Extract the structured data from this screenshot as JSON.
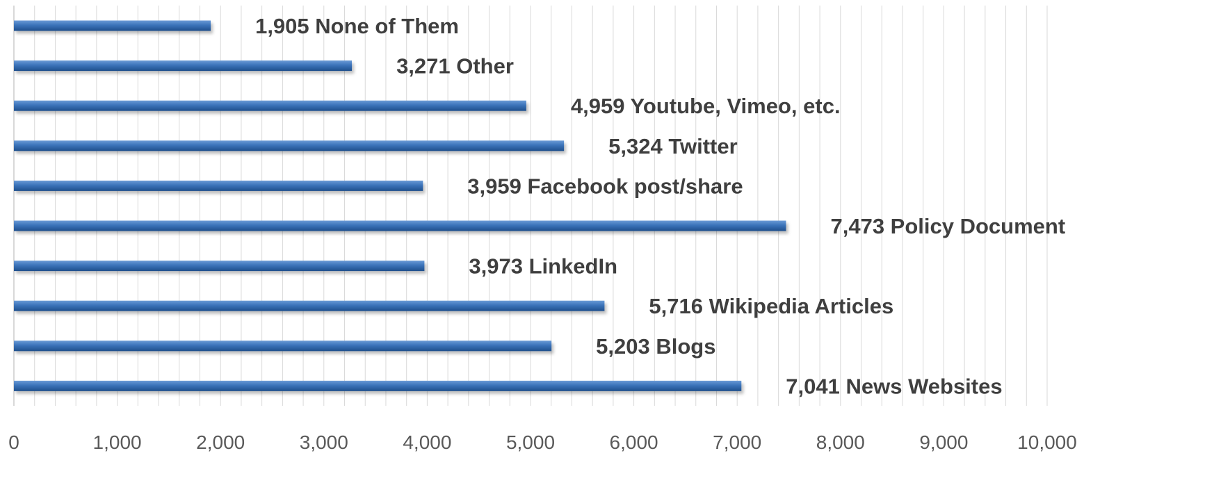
{
  "chart_data": {
    "type": "bar",
    "orientation": "horizontal",
    "categories": [
      "None of Them",
      "Other",
      "Youtube,  Vimeo, etc.",
      "Twitter",
      "Facebook post/share",
      "Policy Document",
      "LinkedIn",
      "Wikipedia Articles",
      "Blogs",
      "News Websites"
    ],
    "values": [
      1905,
      3271,
      4959,
      5324,
      3959,
      7473,
      3973,
      5716,
      5203,
      7041
    ],
    "data_labels": [
      "1,905 None of Them",
      "3,271 Other",
      "4,959 Youtube,  Vimeo, etc.",
      "5,324 Twitter",
      "3,959 Facebook post/share",
      "7,473 Policy Document",
      "3,973 LinkedIn",
      "5,716 Wikipedia Articles",
      "5,203 Blogs",
      "7,041 News Websites"
    ],
    "xlim": [
      0,
      10000
    ],
    "x_ticks": [
      0,
      1000,
      2000,
      3000,
      4000,
      5000,
      6000,
      7000,
      8000,
      9000,
      10000
    ],
    "x_tick_labels": [
      "0",
      "1,000",
      "2,000",
      "3,000",
      "4,000",
      "5,000",
      "6,000",
      "7,000",
      "8,000",
      "9,000",
      "10,000"
    ],
    "minor_grid_step": 200,
    "grid": true,
    "legend": "none",
    "title": "",
    "xlabel": "",
    "ylabel": "",
    "colors": {
      "bar": "#3b73b9",
      "bar_highlight": "#6a9ad6",
      "bar_shadow": "#1f4f8c",
      "label": "#3f3f3f",
      "tick": "#595959",
      "grid": "#d9d9d9"
    }
  }
}
